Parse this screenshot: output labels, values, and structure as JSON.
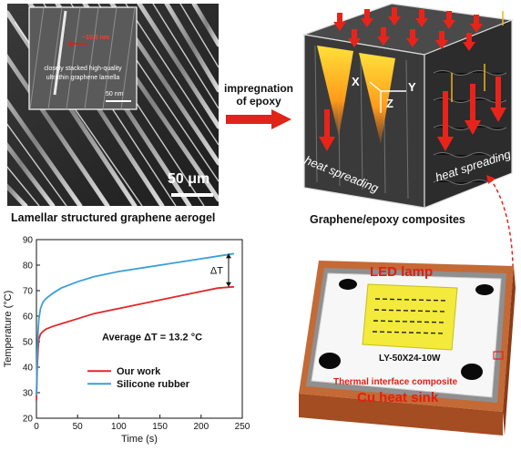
{
  "sem_image": {
    "inset_scale_label": "~10.5 nm",
    "inset_caption_line1": "closely stacked high-quality",
    "inset_caption_line2": "ultrathin graphene lamella",
    "inset_scalebar": "50 nm",
    "scalebar": "50 μm",
    "caption": "Lamellar structured graphene aerogel"
  },
  "process_arrow": {
    "line1": "impregnation",
    "line2": "of epoxy"
  },
  "cube": {
    "axis_x": "X",
    "axis_y": "Y",
    "axis_z": "Z",
    "left_face_label": "heat spreading",
    "right_face_label": "heat spreading",
    "caption": "Graphene/epoxy composites"
  },
  "device": {
    "lamp_label": "LED lamp",
    "chip_label": "LY-50X24-10W",
    "interface_label": "Thermal interface composite",
    "sink_label": "Cu heat sink",
    "colors": {
      "sink": "#b85a2a",
      "chip": "#f3ea3b",
      "label_red": "#e02010"
    }
  },
  "chart_data": {
    "type": "line",
    "xlabel": "Time (s)",
    "ylabel": "Temperature (°C)",
    "xlim": [
      0,
      250
    ],
    "ylim": [
      20,
      90
    ],
    "xticks": [
      "0",
      "50",
      "100",
      "150",
      "200",
      "250"
    ],
    "yticks": [
      "20",
      "30",
      "40",
      "50",
      "60",
      "70",
      "80",
      "90"
    ],
    "grid": false,
    "legend_position": "bottom-left",
    "annotation_delta": "ΔT",
    "annotation_average": "Average ΔT = 13.2 °C",
    "series": [
      {
        "name": "Our work",
        "color": "#e0282a",
        "x": [
          0,
          1,
          2,
          3,
          5,
          8,
          12,
          20,
          30,
          50,
          70,
          100,
          130,
          160,
          190,
          220,
          240
        ],
        "y": [
          27,
          40,
          47,
          51,
          53,
          54,
          55,
          56,
          57,
          59,
          61,
          63,
          65,
          67,
          69,
          71,
          71.5
        ]
      },
      {
        "name": "Silicone rubber",
        "color": "#3aa0d8",
        "x": [
          0,
          1,
          2,
          3,
          5,
          8,
          12,
          20,
          30,
          50,
          70,
          100,
          130,
          160,
          190,
          220,
          240
        ],
        "y": [
          29,
          45,
          54,
          59,
          63,
          65.5,
          67,
          69,
          71,
          73.5,
          75.5,
          77.5,
          79,
          80.5,
          82,
          83.5,
          84.5
        ]
      }
    ]
  }
}
